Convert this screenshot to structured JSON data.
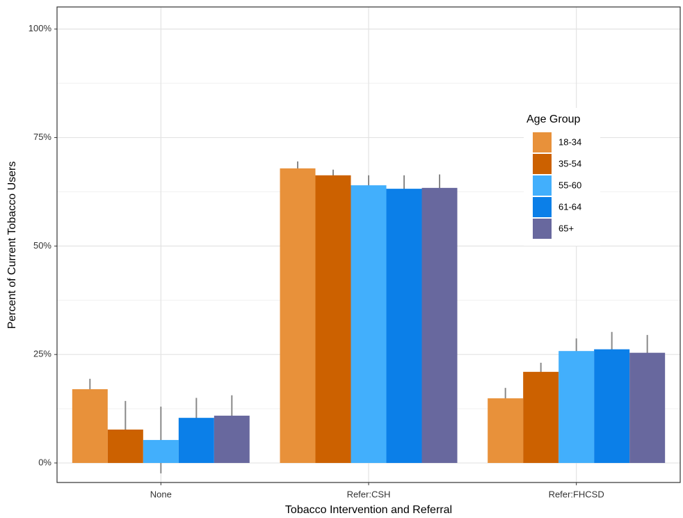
{
  "chart_data": {
    "type": "bar",
    "x_label": "Tobacco Intervention and Referral",
    "y_label": "Percent of Current Tobacco Users",
    "categories": [
      "None",
      "Refer:CSH",
      "Refer:FHCSD"
    ],
    "legend_title": "Age Group",
    "legend_position": "right",
    "series": [
      {
        "name": "18-34",
        "color": "#e8913a",
        "values": [
          17,
          67.9,
          14.9
        ],
        "errors": [
          2.4,
          1.6,
          2.4
        ]
      },
      {
        "name": "35-54",
        "color": "#cc6100",
        "values": [
          7.7,
          66.3,
          21
        ],
        "errors": [
          6.6,
          1.3,
          2.1
        ]
      },
      {
        "name": "55-60",
        "color": "#42affc",
        "values": [
          5.3,
          64,
          25.8
        ],
        "errors": [
          7.7,
          2.3,
          2.9
        ]
      },
      {
        "name": "61-64",
        "color": "#0b7fe8",
        "values": [
          10.4,
          63.2,
          26.2
        ],
        "errors": [
          4.6,
          3.1,
          4
        ]
      },
      {
        "name": "65+",
        "color": "#68689e",
        "values": [
          10.9,
          63.4,
          25.4
        ],
        "errors": [
          4.7,
          3.1,
          4.1
        ]
      }
    ],
    "ylim": [
      -4.5,
      105.1
    ],
    "yticks": [
      {
        "value": 0,
        "label": "0%"
      },
      {
        "value": 25,
        "label": "25%"
      },
      {
        "value": 50,
        "label": "50%"
      },
      {
        "value": 75,
        "label": "75%"
      },
      {
        "value": 100,
        "label": "100%"
      }
    ],
    "y_minor_ticks": [
      12.5,
      37.5,
      62.5,
      87.5
    ],
    "grid": true
  }
}
